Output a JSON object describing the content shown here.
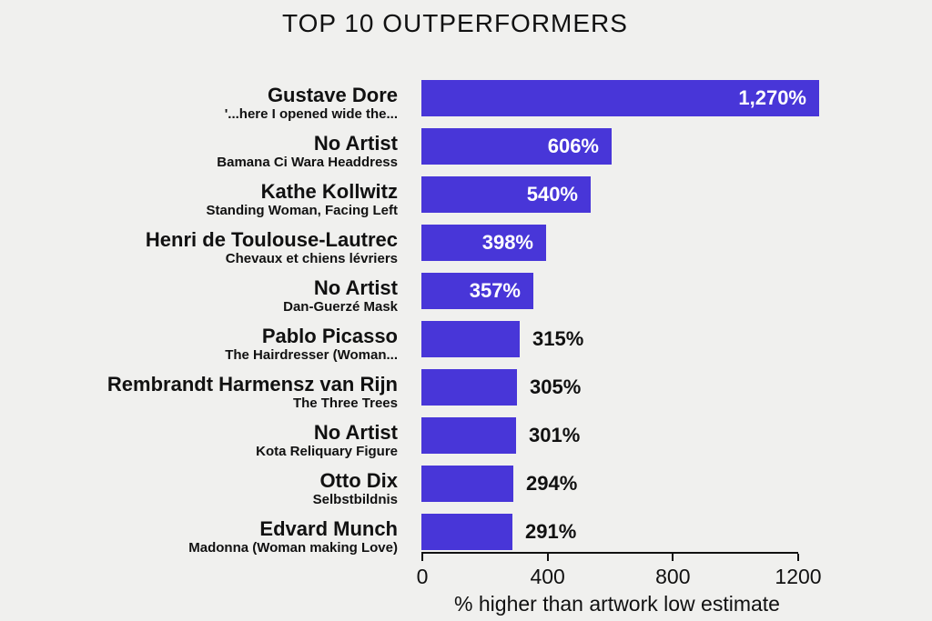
{
  "title": "TOP 10 OUTPERFORMERS",
  "colors": {
    "background": "#f0f0ee",
    "bar": "#4836d8",
    "text": "#111111",
    "bar_label_inside": "#ffffff"
  },
  "chart_data": {
    "type": "bar",
    "orientation": "horizontal",
    "title": "TOP 10 OUTPERFORMERS",
    "xlabel": "% higher than artwork low estimate",
    "xlim": [
      0,
      1200
    ],
    "xticks": [
      0,
      400,
      800,
      1200
    ],
    "grid": false,
    "legend": false,
    "bar_color": "#4836d8",
    "items": [
      {
        "artist": "Gustave Dore",
        "artwork": "'...here I opened wide the...",
        "value": 1270,
        "label": "1,270%",
        "label_inside": true
      },
      {
        "artist": "No Artist",
        "artwork": "Bamana Ci Wara Headdress",
        "value": 606,
        "label": "606%",
        "label_inside": true
      },
      {
        "artist": "Kathe Kollwitz",
        "artwork": "Standing Woman, Facing Left",
        "value": 540,
        "label": "540%",
        "label_inside": true
      },
      {
        "artist": "Henri de Toulouse-Lautrec",
        "artwork": "Chevaux et chiens lévriers",
        "value": 398,
        "label": "398%",
        "label_inside": true
      },
      {
        "artist": "No Artist",
        "artwork": "Dan-Guerzé Mask",
        "value": 357,
        "label": "357%",
        "label_inside": true
      },
      {
        "artist": "Pablo Picasso",
        "artwork": "The Hairdresser (Woman...",
        "value": 315,
        "label": "315%",
        "label_inside": false
      },
      {
        "artist": "Rembrandt Harmensz van Rijn",
        "artwork": "The Three Trees",
        "value": 305,
        "label": "305%",
        "label_inside": false
      },
      {
        "artist": "No Artist",
        "artwork": "Kota Reliquary Figure",
        "value": 301,
        "label": "301%",
        "label_inside": false
      },
      {
        "artist": "Otto Dix",
        "artwork": "Selbstbildnis",
        "value": 294,
        "label": "294%",
        "label_inside": false
      },
      {
        "artist": "Edvard Munch",
        "artwork": "Madonna (Woman making Love)",
        "value": 291,
        "label": "291%",
        "label_inside": false
      }
    ]
  }
}
